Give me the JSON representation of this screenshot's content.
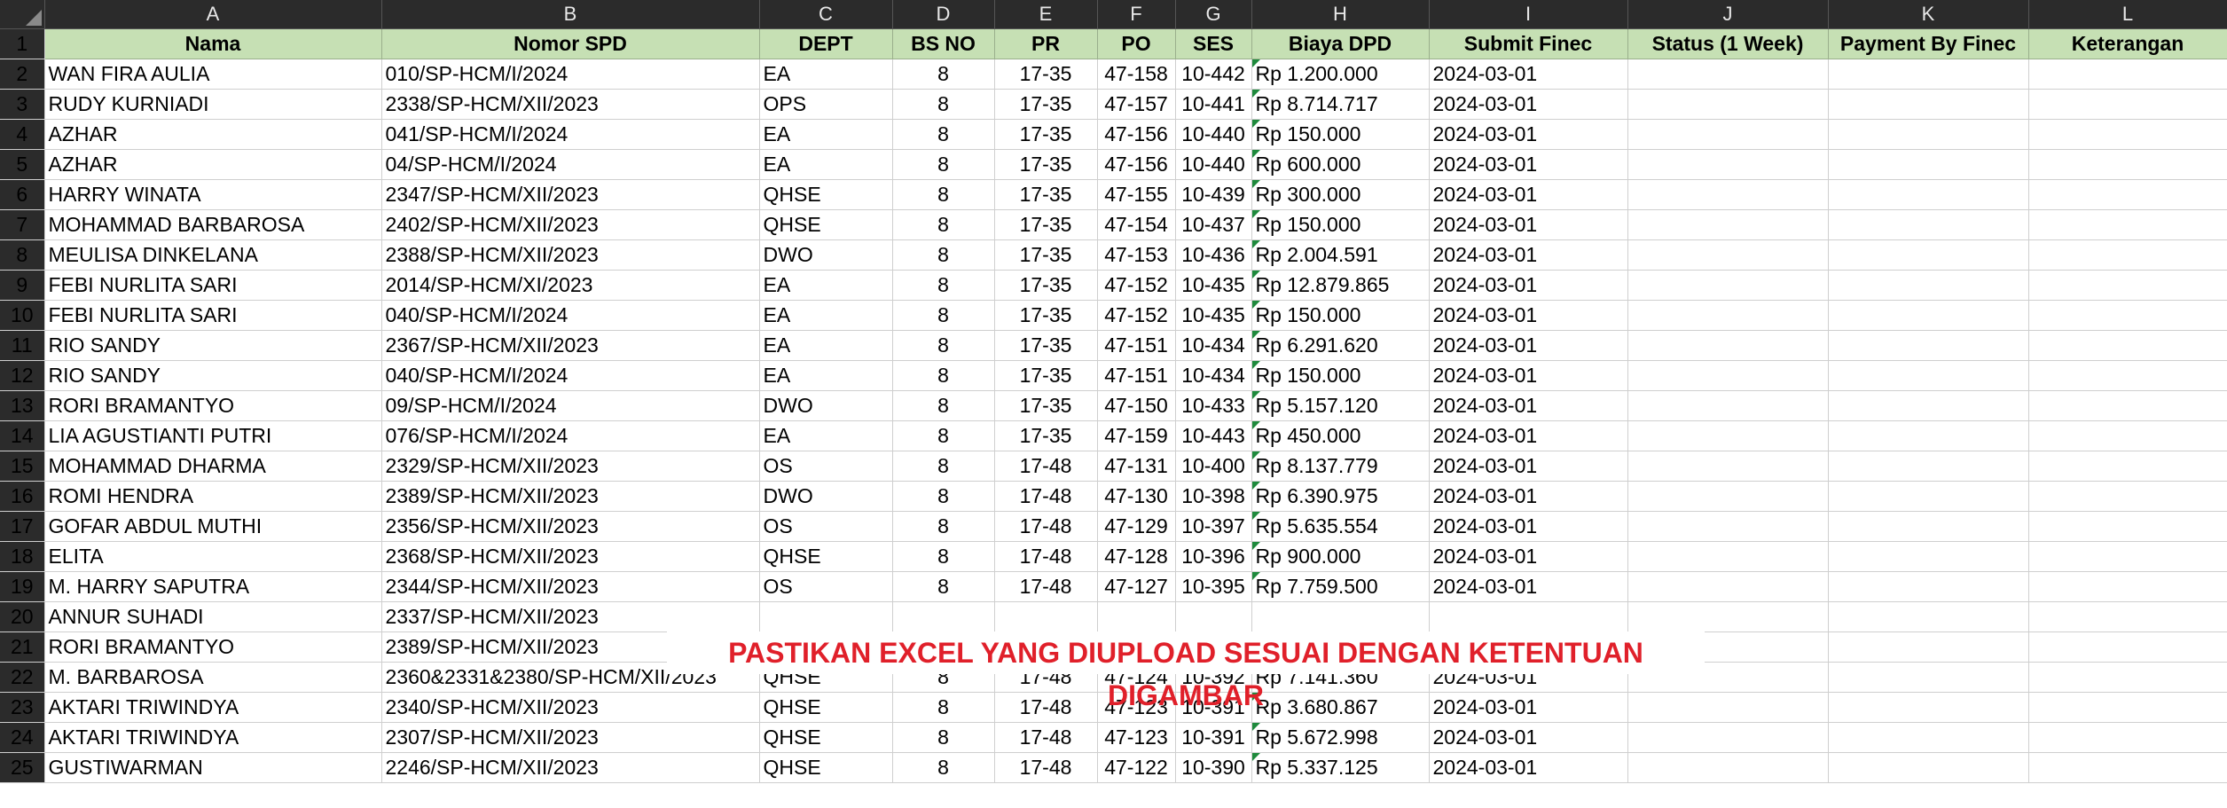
{
  "columns": [
    "A",
    "B",
    "C",
    "D",
    "E",
    "F",
    "G",
    "H",
    "I",
    "J",
    "K",
    "L"
  ],
  "headers": [
    "Nama",
    "Nomor SPD",
    "DEPT",
    "BS NO",
    "PR",
    "PO",
    "SES",
    "Biaya DPD",
    "Submit Finec",
    "Status (1 Week)",
    "Payment By Finec",
    "Keterangan"
  ],
  "rows": [
    {
      "n": "2",
      "nama": "WAN FIRA AULIA",
      "spd": "010/SP-HCM/I/2024",
      "dept": "EA",
      "bs": "8",
      "pr": "17-35",
      "po": "47-158",
      "ses": "10-442",
      "biaya": "Rp 1.200.000",
      "submit": "2024-03-01"
    },
    {
      "n": "3",
      "nama": "RUDY KURNIADI",
      "spd": "2338/SP-HCM/XII/2023",
      "dept": "OPS",
      "bs": "8",
      "pr": "17-35",
      "po": "47-157",
      "ses": "10-441",
      "biaya": "Rp 8.714.717",
      "submit": "2024-03-01"
    },
    {
      "n": "4",
      "nama": "AZHAR",
      "spd": "041/SP-HCM/I/2024",
      "dept": "EA",
      "bs": "8",
      "pr": "17-35",
      "po": "47-156",
      "ses": "10-440",
      "biaya": "Rp 150.000",
      "submit": "2024-03-01"
    },
    {
      "n": "5",
      "nama": "AZHAR",
      "spd": "04/SP-HCM/I/2024",
      "dept": "EA",
      "bs": "8",
      "pr": "17-35",
      "po": "47-156",
      "ses": "10-440",
      "biaya": "Rp 600.000",
      "submit": "2024-03-01"
    },
    {
      "n": "6",
      "nama": "HARRY WINATA",
      "spd": "2347/SP-HCM/XII/2023",
      "dept": "QHSE",
      "bs": "8",
      "pr": "17-35",
      "po": "47-155",
      "ses": "10-439",
      "biaya": "Rp 300.000",
      "submit": "2024-03-01"
    },
    {
      "n": "7",
      "nama": "MOHAMMAD BARBAROSA",
      "spd": "2402/SP-HCM/XII/2023",
      "dept": "QHSE",
      "bs": "8",
      "pr": "17-35",
      "po": "47-154",
      "ses": "10-437",
      "biaya": "Rp 150.000",
      "submit": "2024-03-01"
    },
    {
      "n": "8",
      "nama": "MEULISA DINKELANA",
      "spd": "2388/SP-HCM/XII/2023",
      "dept": "DWO",
      "bs": "8",
      "pr": "17-35",
      "po": "47-153",
      "ses": "10-436",
      "biaya": "Rp 2.004.591",
      "submit": "2024-03-01"
    },
    {
      "n": "9",
      "nama": "FEBI NURLITA SARI",
      "spd": "2014/SP-HCM/XI/2023",
      "dept": "EA",
      "bs": "8",
      "pr": "17-35",
      "po": "47-152",
      "ses": "10-435",
      "biaya": "Rp 12.879.865",
      "submit": "2024-03-01"
    },
    {
      "n": "10",
      "nama": "FEBI NURLITA SARI",
      "spd": "040/SP-HCM/I/2024",
      "dept": "EA",
      "bs": "8",
      "pr": "17-35",
      "po": "47-152",
      "ses": "10-435",
      "biaya": "Rp 150.000",
      "submit": "2024-03-01"
    },
    {
      "n": "11",
      "nama": "RIO SANDY",
      "spd": "2367/SP-HCM/XII/2023",
      "dept": "EA",
      "bs": "8",
      "pr": "17-35",
      "po": "47-151",
      "ses": "10-434",
      "biaya": "Rp 6.291.620",
      "submit": "2024-03-01"
    },
    {
      "n": "12",
      "nama": "RIO SANDY",
      "spd": "040/SP-HCM/I/2024",
      "dept": "EA",
      "bs": "8",
      "pr": "17-35",
      "po": "47-151",
      "ses": "10-434",
      "biaya": "Rp 150.000",
      "submit": "2024-03-01"
    },
    {
      "n": "13",
      "nama": "RORI BRAMANTYO",
      "spd": "09/SP-HCM/I/2024",
      "dept": "DWO",
      "bs": "8",
      "pr": "17-35",
      "po": "47-150",
      "ses": "10-433",
      "biaya": "Rp 5.157.120",
      "submit": "2024-03-01"
    },
    {
      "n": "14",
      "nama": "LIA AGUSTIANTI PUTRI",
      "spd": "076/SP-HCM/I/2024",
      "dept": "EA",
      "bs": "8",
      "pr": "17-35",
      "po": "47-159",
      "ses": "10-443",
      "biaya": "Rp 450.000",
      "submit": "2024-03-01"
    },
    {
      "n": "15",
      "nama": "MOHAMMAD DHARMA",
      "spd": "2329/SP-HCM/XII/2023",
      "dept": "OS",
      "bs": "8",
      "pr": "17-48",
      "po": "47-131",
      "ses": "10-400",
      "biaya": "Rp 8.137.779",
      "submit": "2024-03-01"
    },
    {
      "n": "16",
      "nama": "ROMI HENDRA",
      "spd": "2389/SP-HCM/XII/2023",
      "dept": "DWO",
      "bs": "8",
      "pr": "17-48",
      "po": "47-130",
      "ses": "10-398",
      "biaya": "Rp 6.390.975",
      "submit": "2024-03-01"
    },
    {
      "n": "17",
      "nama": "GOFAR ABDUL MUTHI",
      "spd": "2356/SP-HCM/XII/2023",
      "dept": "OS",
      "bs": "8",
      "pr": "17-48",
      "po": "47-129",
      "ses": "10-397",
      "biaya": "Rp 5.635.554",
      "submit": "2024-03-01"
    },
    {
      "n": "18",
      "nama": "ELITA",
      "spd": "2368/SP-HCM/XII/2023",
      "dept": "QHSE",
      "bs": "8",
      "pr": "17-48",
      "po": "47-128",
      "ses": "10-396",
      "biaya": "Rp 900.000",
      "submit": "2024-03-01"
    },
    {
      "n": "19",
      "nama": "M. HARRY SAPUTRA",
      "spd": "2344/SP-HCM/XII/2023",
      "dept": "OS",
      "bs": "8",
      "pr": "17-48",
      "po": "47-127",
      "ses": "10-395",
      "biaya": "Rp 7.759.500",
      "submit": "2024-03-01"
    },
    {
      "n": "20",
      "nama": "ANNUR SUHADI",
      "spd": "2337/SP-HCM/XII/2023",
      "dept": "",
      "bs": "",
      "pr": "",
      "po": "",
      "ses": "",
      "biaya": "",
      "submit": ""
    },
    {
      "n": "21",
      "nama": "RORI BRAMANTYO",
      "spd": "2389/SP-HCM/XII/2023",
      "dept": "",
      "bs": "",
      "pr": "",
      "po": "",
      "ses": "",
      "biaya": "",
      "submit": ""
    },
    {
      "n": "22",
      "nama": "M. BARBAROSA",
      "spd": "2360&2331&2380/SP-HCM/XII/2023",
      "dept": "QHSE",
      "bs": "8",
      "pr": "17-48",
      "po": "47-124",
      "ses": "10-392",
      "biaya": "Rp 7.141.360",
      "submit": "2024-03-01"
    },
    {
      "n": "23",
      "nama": "AKTARI TRIWINDYA",
      "spd": "2340/SP-HCM/XII/2023",
      "dept": "QHSE",
      "bs": "8",
      "pr": "17-48",
      "po": "47-123",
      "ses": "10-391",
      "biaya": "Rp 3.680.867",
      "submit": "2024-03-01"
    },
    {
      "n": "24",
      "nama": "AKTARI TRIWINDYA",
      "spd": "2307/SP-HCM/XII/2023",
      "dept": "QHSE",
      "bs": "8",
      "pr": "17-48",
      "po": "47-123",
      "ses": "10-391",
      "biaya": "Rp 5.672.998",
      "submit": "2024-03-01"
    },
    {
      "n": "25",
      "nama": "GUSTIWARMAN",
      "spd": "2246/SP-HCM/XII/2023",
      "dept": "QHSE",
      "bs": "8",
      "pr": "17-48",
      "po": "47-122",
      "ses": "10-390",
      "biaya": "Rp 5.337.125",
      "submit": "2024-03-01"
    }
  ],
  "banner": "PASTIKAN EXCEL YANG DIUPLOAD SESUAI DENGAN KETENTUAN DIGAMBAR",
  "colors": {
    "header_fill": "#c6e0b4",
    "banner_text": "#e0202a",
    "chrome": "#2b2b2b"
  }
}
